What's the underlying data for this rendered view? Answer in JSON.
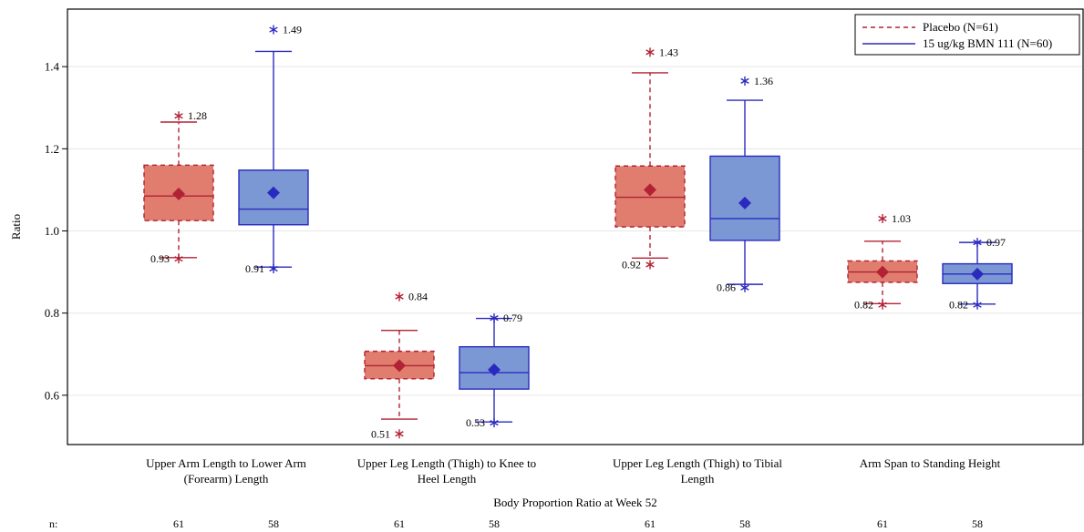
{
  "chart_data": {
    "type": "boxplot",
    "ylabel": "Ratio",
    "xlabel": "Body Proportion Ratio at Week 52",
    "ylim": [
      0.48,
      1.54
    ],
    "yticks": [
      "0.6",
      "0.8",
      "1.0",
      "1.2",
      "1.4"
    ],
    "grid": "horizontal",
    "legend_position": "top-right",
    "n_row_label": "n:",
    "categories": [
      [
        "Upper Arm Length to Lower Arm",
        "(Forearm) Length"
      ],
      [
        "Upper Leg Length (Thigh) to Knee to",
        "Heel Length"
      ],
      [
        "Upper Leg Length (Thigh) to Tibial",
        "Length"
      ],
      [
        "Arm Span to Standing Height"
      ]
    ],
    "series": [
      {
        "name": "Placebo (N=61)",
        "color": "#b22234",
        "fill": "#e07d6e",
        "line_style": "dashed",
        "n": [
          "61",
          "61",
          "61",
          "61"
        ],
        "boxes": [
          {
            "q1": 1.025,
            "median": 1.085,
            "q3": 1.16,
            "mean": 1.09,
            "whisker_low": 0.935,
            "whisker_high": 1.265,
            "outlier_high": 1.28,
            "outlier_high_label": "1.28",
            "outlier_low": 0.932,
            "outlier_low_label": "0.93"
          },
          {
            "q1": 0.64,
            "median": 0.672,
            "q3": 0.707,
            "mean": 0.672,
            "whisker_low": 0.542,
            "whisker_high": 0.758,
            "outlier_high": 0.84,
            "outlier_high_label": "0.84",
            "outlier_low": 0.506,
            "outlier_low_label": "0.51"
          },
          {
            "q1": 1.01,
            "median": 1.082,
            "q3": 1.158,
            "mean": 1.1,
            "whisker_low": 0.934,
            "whisker_high": 1.385,
            "outlier_high": 1.435,
            "outlier_high_label": "1.43",
            "outlier_low": 0.918,
            "outlier_low_label": "0.92"
          },
          {
            "q1": 0.875,
            "median": 0.9,
            "q3": 0.927,
            "mean": 0.9,
            "whisker_low": 0.823,
            "whisker_high": 0.975,
            "outlier_high": 1.03,
            "outlier_high_label": "1.03",
            "outlier_low": 0.82,
            "outlier_low_label": "0.82"
          }
        ]
      },
      {
        "name": "15 ug/kg BMN 111 (N=60)",
        "color": "#2a2ac0",
        "fill": "#7c98d4",
        "line_style": "solid",
        "n": [
          "58",
          "58",
          "58",
          "58"
        ],
        "boxes": [
          {
            "q1": 1.015,
            "median": 1.053,
            "q3": 1.148,
            "mean": 1.093,
            "whisker_low": 0.912,
            "whisker_high": 1.437,
            "outlier_high": 1.49,
            "outlier_high_label": "1.49",
            "outlier_low": 0.908,
            "outlier_low_label": "0.91"
          },
          {
            "q1": 0.615,
            "median": 0.655,
            "q3": 0.718,
            "mean": 0.662,
            "whisker_low": 0.535,
            "whisker_high": 0.787,
            "outlier_high": 0.788,
            "outlier_high_label": "0.79",
            "outlier_low": 0.533,
            "outlier_low_label": "0.53"
          },
          {
            "q1": 0.977,
            "median": 1.03,
            "q3": 1.182,
            "mean": 1.068,
            "whisker_low": 0.87,
            "whisker_high": 1.318,
            "outlier_high": 1.365,
            "outlier_high_label": "1.36",
            "outlier_low": 0.862,
            "outlier_low_label": "0.86"
          },
          {
            "q1": 0.872,
            "median": 0.895,
            "q3": 0.92,
            "mean": 0.895,
            "whisker_low": 0.822,
            "whisker_high": 0.972,
            "outlier_high": 0.972,
            "outlier_high_label": "0.97",
            "outlier_low": 0.82,
            "outlier_low_label": "0.82"
          }
        ]
      }
    ]
  }
}
